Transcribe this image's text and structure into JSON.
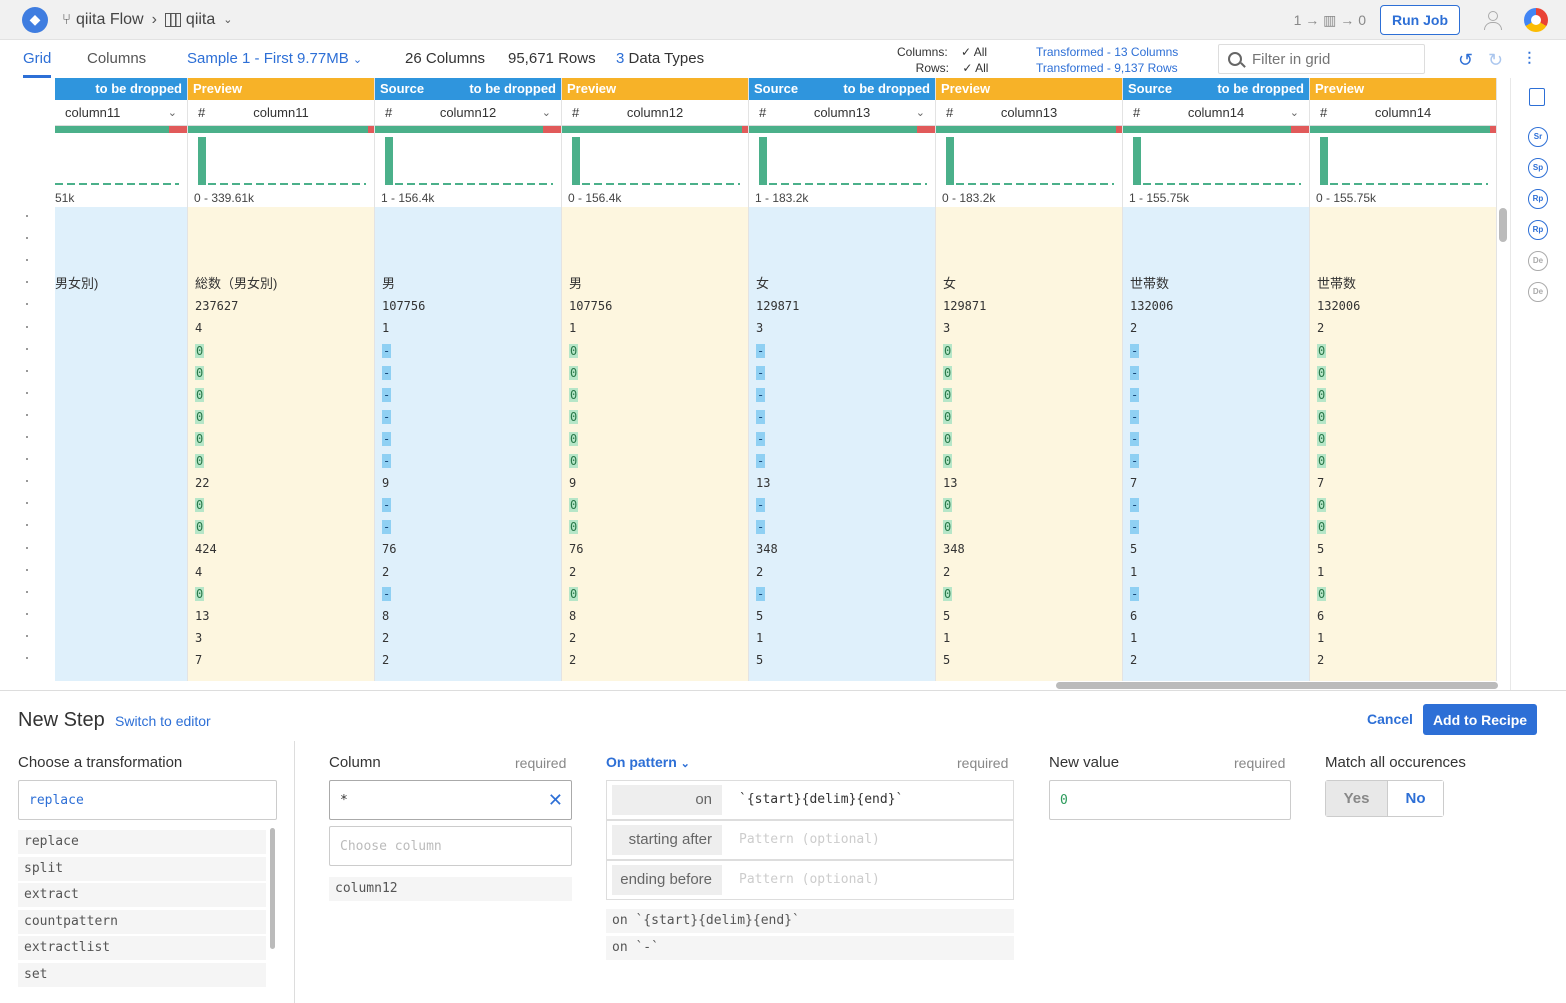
{
  "topbar": {
    "flow_name": "qiita Flow",
    "dataset_name": "qiita",
    "counter_left": "1",
    "counter_right": "0",
    "run_job": "Run Job"
  },
  "tabs": {
    "grid": "Grid",
    "columns": "Columns",
    "sample": "Sample 1 - First 9.77MB",
    "columns_count": "26",
    "columns_label": "Columns",
    "rows_count": "95,671",
    "rows_label": "Rows",
    "types_count": "3",
    "types_label": "Data Types"
  },
  "filters": {
    "columns_label": "Columns:",
    "columns_value": "All",
    "rows_label": "Rows:",
    "rows_value": "All",
    "transformed_cols": "Transformed - 13 Columns",
    "transformed_rows": "Transformed - 9,137 Rows",
    "search_placeholder": "Filter in grid"
  },
  "grid": {
    "columns": [
      {
        "kind": "src",
        "bar": "",
        "bar_right": "to be dropped",
        "hash": "",
        "name": "column11",
        "range": "51k",
        "cells": [
          "",
          "",
          "",
          "男女別)",
          "",
          "",
          "",
          "",
          "",
          "",
          "",
          "",
          "",
          "",
          "",
          "",
          "",
          "",
          "",
          "",
          ""
        ]
      },
      {
        "kind": "prev",
        "bar": "Preview",
        "bar_right": "",
        "hash": "#",
        "name": "column11",
        "range": "0 - 339.61k",
        "cells": [
          "",
          "",
          "",
          "総数（男女別)",
          "237627",
          "4",
          "0",
          "0",
          "0",
          "0",
          "0",
          "0",
          "22",
          "0",
          "0",
          "424",
          "4",
          "0",
          "13",
          "3",
          "7"
        ]
      },
      {
        "kind": "src",
        "bar": "Source",
        "bar_right": "to be dropped",
        "hash": "#",
        "name": "column12",
        "range": "1 - 156.4k",
        "cells": [
          "",
          "",
          "",
          "男",
          "107756",
          "1",
          "-",
          "-",
          "-",
          "-",
          "-",
          "-",
          "9",
          "-",
          "-",
          "76",
          "2",
          "-",
          "8",
          "2",
          "2"
        ]
      },
      {
        "kind": "prev",
        "bar": "Preview",
        "bar_right": "",
        "hash": "#",
        "name": "column12",
        "range": "0 - 156.4k",
        "cells": [
          "",
          "",
          "",
          "男",
          "107756",
          "1",
          "0",
          "0",
          "0",
          "0",
          "0",
          "0",
          "9",
          "0",
          "0",
          "76",
          "2",
          "0",
          "8",
          "2",
          "2"
        ]
      },
      {
        "kind": "src",
        "bar": "Source",
        "bar_right": "to be dropped",
        "hash": "#",
        "name": "column13",
        "range": "1 - 183.2k",
        "cells": [
          "",
          "",
          "",
          "女",
          "129871",
          "3",
          "-",
          "-",
          "-",
          "-",
          "-",
          "-",
          "13",
          "-",
          "-",
          "348",
          "2",
          "-",
          "5",
          "1",
          "5"
        ]
      },
      {
        "kind": "prev",
        "bar": "Preview",
        "bar_right": "",
        "hash": "#",
        "name": "column13",
        "range": "0 - 183.2k",
        "cells": [
          "",
          "",
          "",
          "女",
          "129871",
          "3",
          "0",
          "0",
          "0",
          "0",
          "0",
          "0",
          "13",
          "0",
          "0",
          "348",
          "2",
          "0",
          "5",
          "1",
          "5"
        ]
      },
      {
        "kind": "src",
        "bar": "Source",
        "bar_right": "to be dropped",
        "hash": "#",
        "name": "column14",
        "range": "1 - 155.75k",
        "cells": [
          "",
          "",
          "",
          "世帯数",
          "132006",
          "2",
          "-",
          "-",
          "-",
          "-",
          "-",
          "-",
          "7",
          "-",
          "-",
          "5",
          "1",
          "-",
          "6",
          "1",
          "2"
        ]
      },
      {
        "kind": "prev",
        "bar": "Preview",
        "bar_right": "",
        "hash": "#",
        "name": "column14",
        "range": "0 - 155.75k",
        "cells": [
          "",
          "",
          "",
          "世帯数",
          "132006",
          "2",
          "0",
          "0",
          "0",
          "0",
          "0",
          "0",
          "7",
          "0",
          "0",
          "5",
          "1",
          "0",
          "6",
          "1",
          "2"
        ]
      }
    ]
  },
  "panel": {
    "title": "New Step",
    "switch": "Switch to editor",
    "cancel": "Cancel",
    "add": "Add to Recipe",
    "transform_label": "Choose a transformation",
    "transform_value": "replace",
    "transform_list": [
      "replace",
      "split",
      "extract",
      "countpattern",
      "extractlist",
      "set"
    ],
    "column_label": "Column",
    "column_req": "required",
    "column_value": "*",
    "column_placeholder": "Choose column",
    "column_suggestion": "column12",
    "pattern_label": "On pattern",
    "pattern_req": "required",
    "pat_on_label": "on",
    "pat_on_value": "`{start}{delim}{end}`",
    "pat_after_label": "starting after",
    "pat_after_placeholder": "Pattern (optional)",
    "pat_before_label": "ending before",
    "pat_before_placeholder": "Pattern (optional)",
    "pat_suggestions": [
      "on `{start}{delim}{end}`",
      "on `-`"
    ],
    "newvalue_label": "New value",
    "newvalue_req": "required",
    "newvalue_value": "0",
    "match_label": "Match all occurences",
    "yes": "Yes",
    "no": "No"
  },
  "icons": [
    "logo-icon",
    "flow-icon",
    "chevron-right-icon",
    "table-icon",
    "chevron-down-icon",
    "user-icon",
    "help-icon",
    "search-icon",
    "undo-icon",
    "redo-icon",
    "settings-sliders-icon",
    "recipe-icon",
    "close-icon"
  ]
}
